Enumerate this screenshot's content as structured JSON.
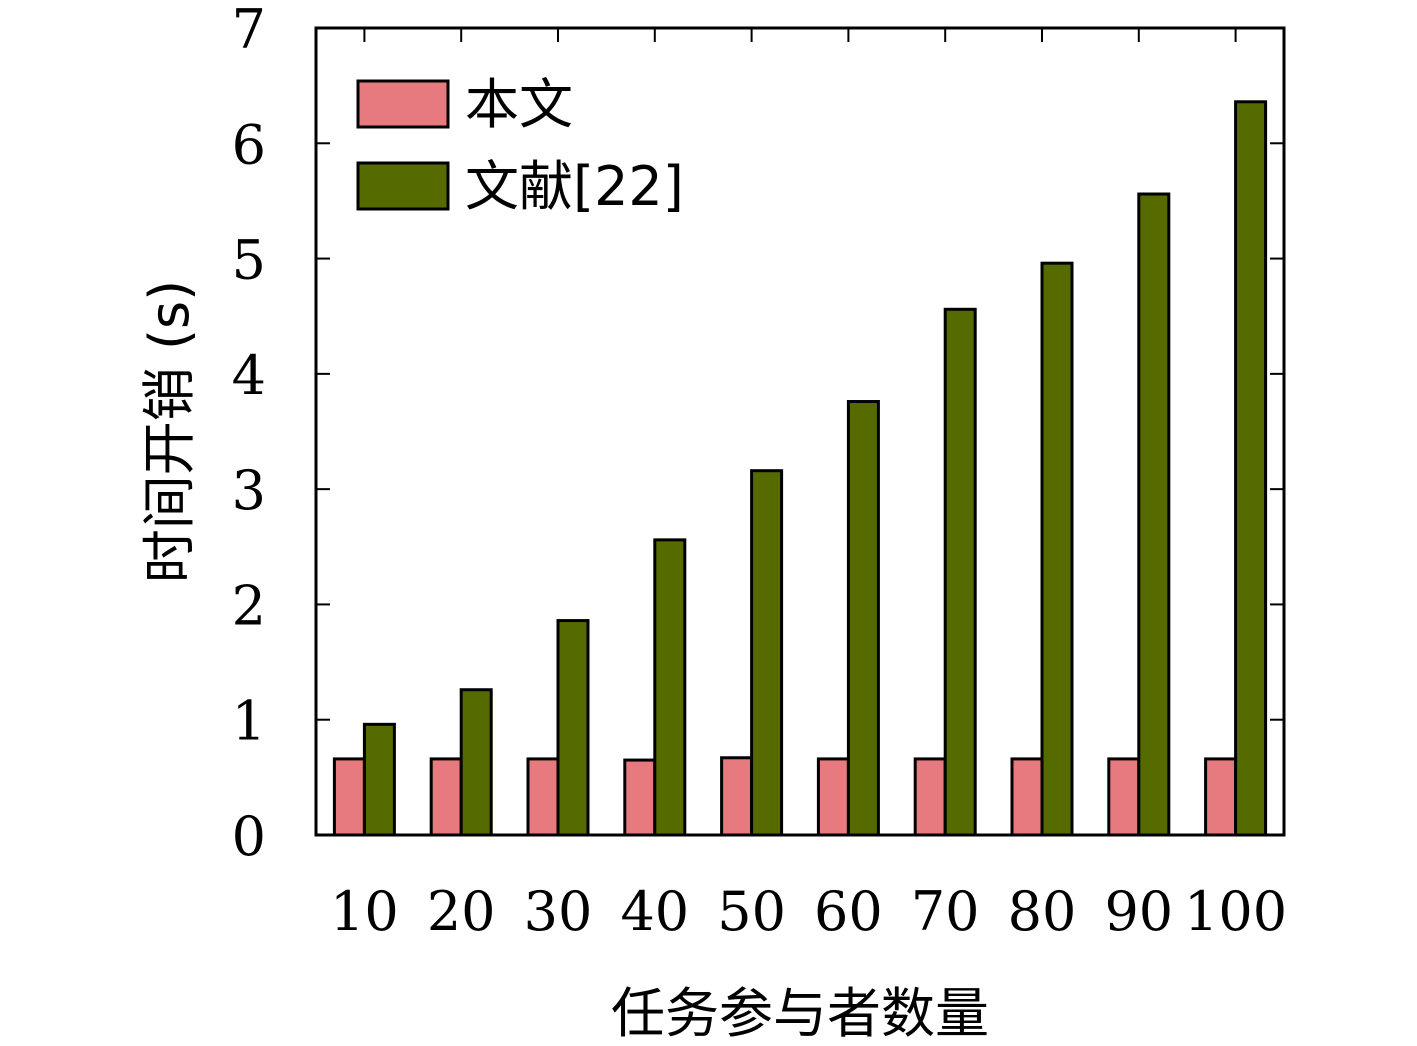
{
  "chart_data": {
    "type": "bar",
    "title": "",
    "xlabel": "任务参与者数量",
    "ylabel": "时间开销 (s)",
    "ylim": [
      0,
      7
    ],
    "yticks": [
      0,
      1,
      2,
      3,
      4,
      5,
      6,
      7
    ],
    "categories": [
      "10",
      "20",
      "30",
      "40",
      "50",
      "60",
      "70",
      "80",
      "90",
      "100"
    ],
    "series": [
      {
        "name": "本文",
        "color": "#e67a7f",
        "values": [
          0.66,
          0.66,
          0.66,
          0.65,
          0.67,
          0.66,
          0.66,
          0.66,
          0.66,
          0.66
        ]
      },
      {
        "name": "文献[22]",
        "color": "#556b00",
        "values": [
          0.96,
          1.26,
          1.86,
          2.56,
          3.16,
          3.76,
          4.56,
          4.96,
          5.56,
          6.36
        ]
      }
    ],
    "grid": false,
    "legend": "top-left"
  }
}
